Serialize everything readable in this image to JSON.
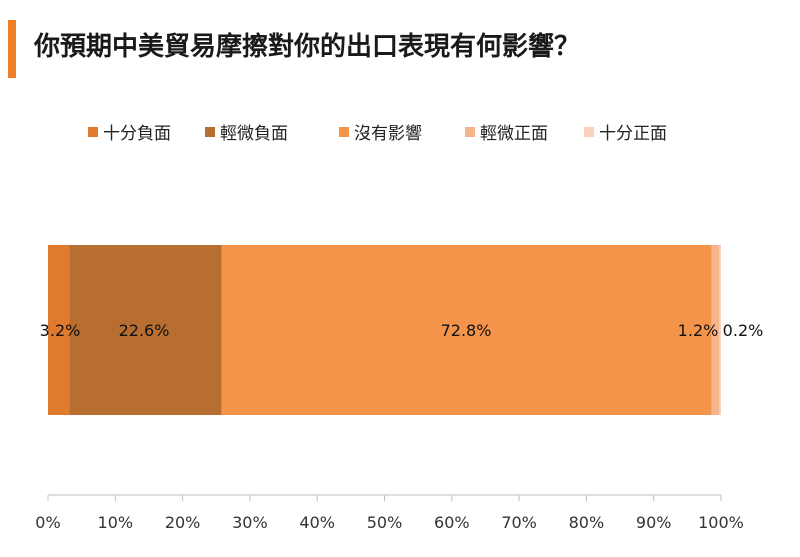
{
  "header": {
    "title": "你預期中美貿易摩擦對你的出口表現有何影響？",
    "accent_color": "#f07f2a"
  },
  "chart_data": {
    "type": "bar",
    "orientation": "horizontal",
    "stacked": true,
    "title": "你預期中美貿易摩擦對你的出口表現有何影響？",
    "categories": [
      ""
    ],
    "series": [
      {
        "name": "十分負面",
        "values": [
          3.2
        ],
        "label": "3.2%",
        "color": "#e07b2e"
      },
      {
        "name": "輕微負面",
        "values": [
          22.6
        ],
        "label": "22.6%",
        "color": "#b86d31"
      },
      {
        "name": "沒有影響",
        "values": [
          72.8
        ],
        "label": "72.8%",
        "color": "#f4944a"
      },
      {
        "name": "輕微正面",
        "values": [
          1.2
        ],
        "label": "1.2%",
        "color": "#f6b68d"
      },
      {
        "name": "十分正面",
        "values": [
          0.2
        ],
        "label": "0.2%",
        "color": "#f9d2bb"
      }
    ],
    "xlim": [
      0,
      100
    ],
    "xticks": [
      "0%",
      "10%",
      "20%",
      "30%",
      "40%",
      "50%",
      "60%",
      "70%",
      "80%",
      "90%",
      "100%"
    ],
    "xlabel": "",
    "ylabel": "",
    "grid": false,
    "legend_position": "top"
  }
}
